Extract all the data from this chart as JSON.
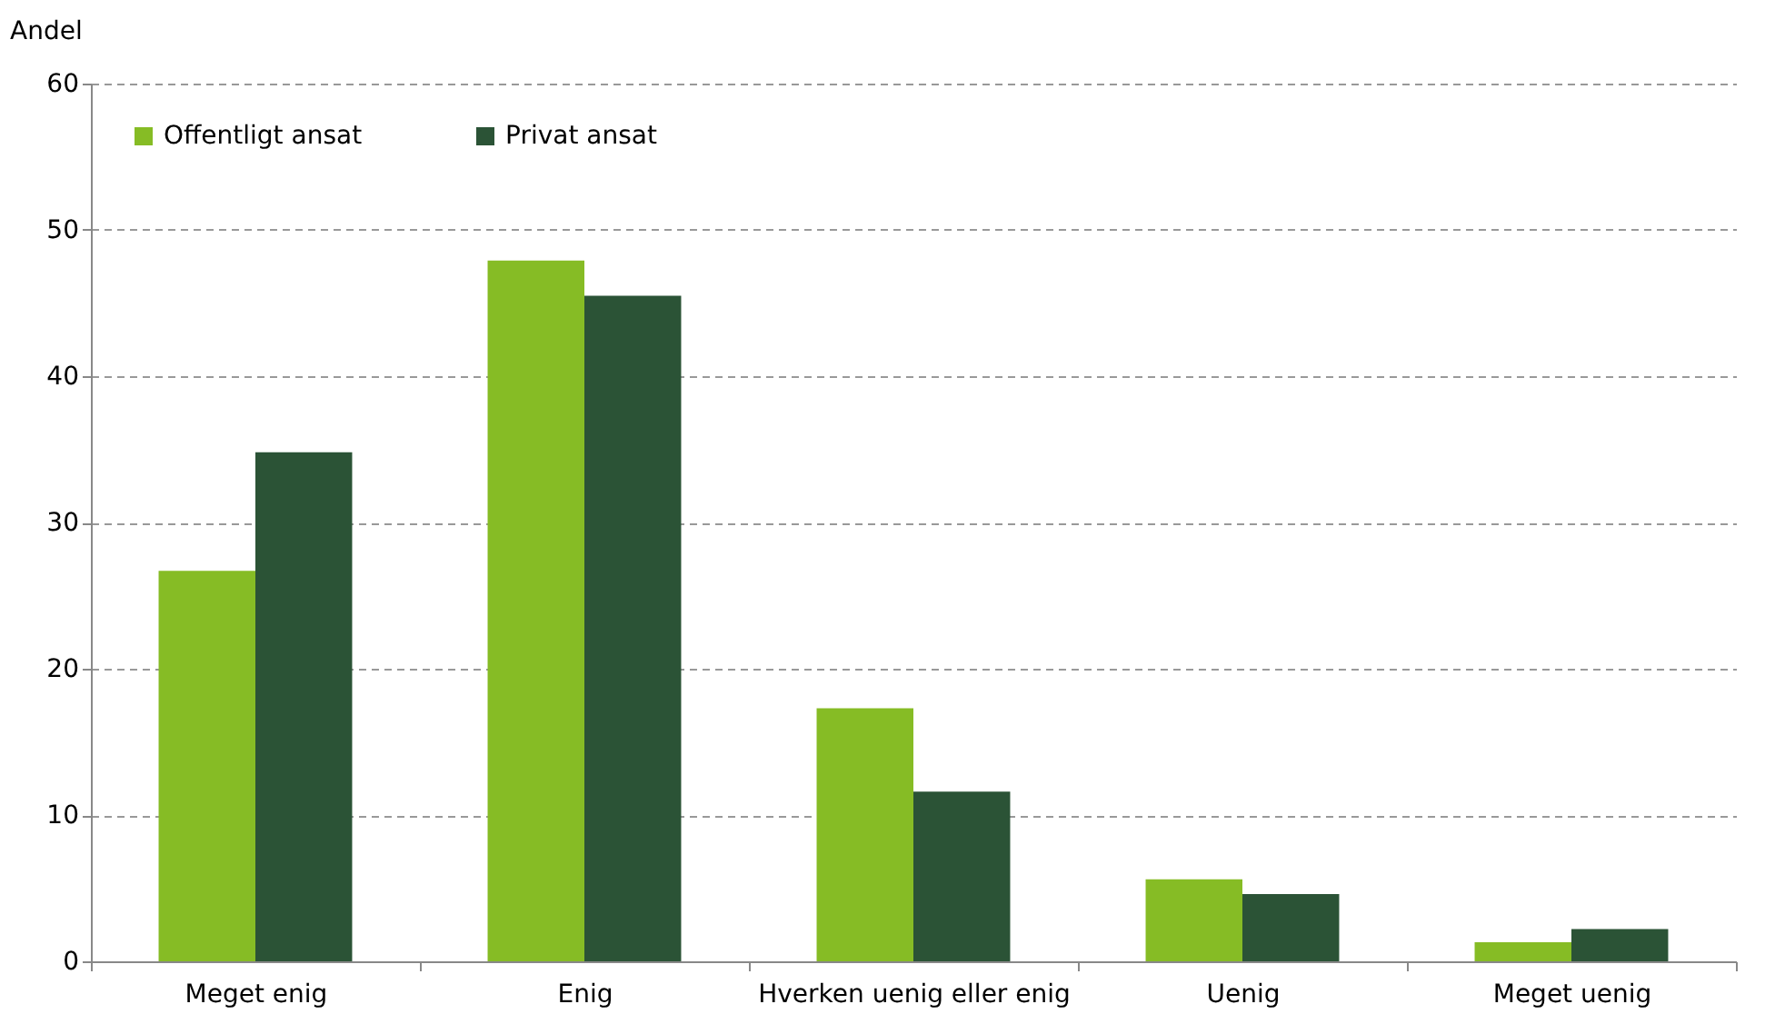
{
  "chart_data": {
    "type": "bar",
    "ylabel": "Andel",
    "categories": [
      "Meget enig",
      "Enig",
      "Hverken uenig eller enig",
      "Uenig",
      "Meget uenig"
    ],
    "series": [
      {
        "name": "Offentligt ansat",
        "color": "#86bc25",
        "values": [
          26.7,
          47.9,
          17.3,
          5.6,
          1.3
        ]
      },
      {
        "name": "Privat ansat",
        "color": "#2b5336",
        "values": [
          34.8,
          45.5,
          11.6,
          4.6,
          2.2
        ]
      }
    ],
    "ylim": [
      0,
      60
    ],
    "yticks": [
      0,
      10,
      20,
      30,
      40,
      50,
      60
    ],
    "grid": "y",
    "legend": "top left"
  }
}
